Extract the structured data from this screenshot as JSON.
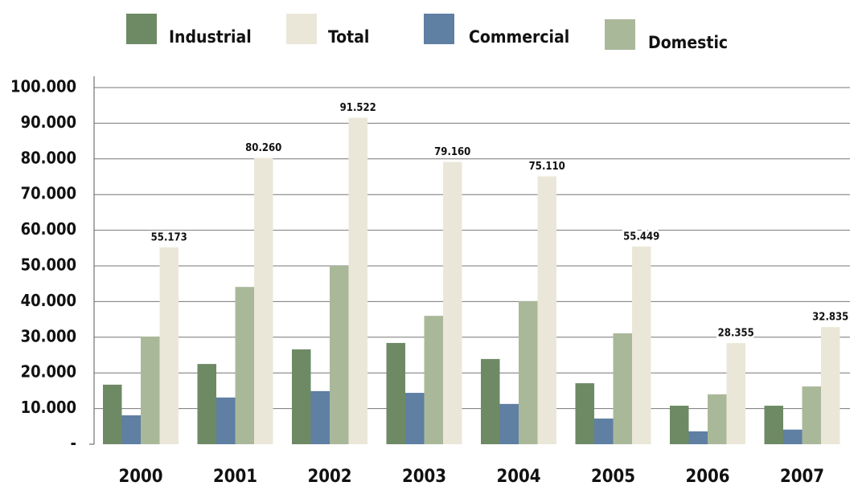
{
  "chart_data": {
    "type": "bar",
    "categories": [
      "2000",
      "2001",
      "2002",
      "2003",
      "2004",
      "2005",
      "2006",
      "2007"
    ],
    "series": [
      {
        "name": "Industrial",
        "color": "#6e8a65",
        "values": [
          16700,
          22500,
          26600,
          28400,
          23900,
          17100,
          10800,
          10800
        ]
      },
      {
        "name": "Total",
        "color": "#ebe7d8",
        "values": [
          55173,
          80260,
          91522,
          79160,
          75110,
          55449,
          28355,
          32835
        ],
        "value_labels": [
          "55.173",
          "80.260",
          "91.522",
          "79.160",
          "75.110",
          "55.449",
          "28.355",
          "32.835"
        ]
      },
      {
        "name": "Commercial",
        "color": "#5f7fa3",
        "values": [
          8100,
          13100,
          14900,
          14400,
          11300,
          7200,
          3600,
          4100
        ]
      },
      {
        "name": "Domestic",
        "color": "#aab89a",
        "values": [
          30200,
          44100,
          50000,
          36000,
          40100,
          31100,
          14000,
          16200
        ]
      }
    ],
    "ylim": [
      0,
      100000
    ],
    "yticks": [
      {
        "value": 0,
        "label": "-"
      },
      {
        "value": 10000,
        "label": "10.000"
      },
      {
        "value": 20000,
        "label": "20.000"
      },
      {
        "value": 30000,
        "label": "30.000"
      },
      {
        "value": 40000,
        "label": "40.000"
      },
      {
        "value": 50000,
        "label": "50.000"
      },
      {
        "value": 60000,
        "label": "60.000"
      },
      {
        "value": 70000,
        "label": "70.000"
      },
      {
        "value": 80000,
        "label": "80.000"
      },
      {
        "value": 90000,
        "label": "90.000"
      },
      {
        "value": 100000,
        "label": "100.000"
      }
    ],
    "grid": true,
    "legend": "top"
  }
}
